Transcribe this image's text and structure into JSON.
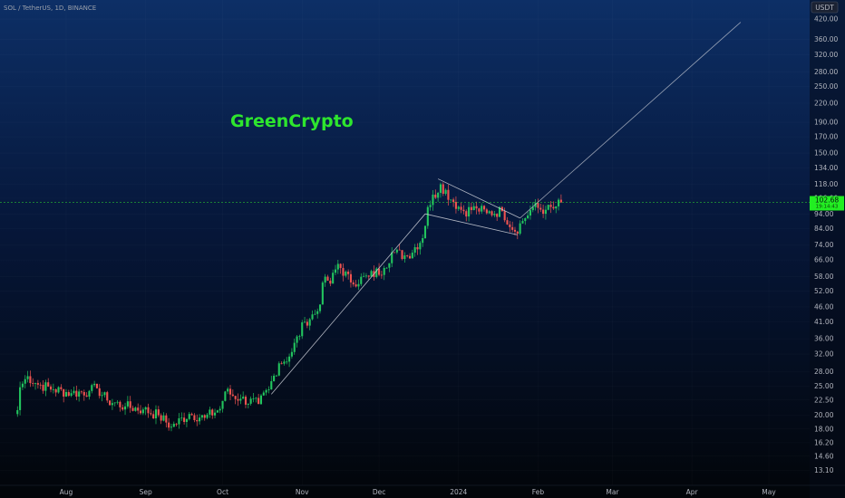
{
  "header": {
    "symbol": "SOL / TetherUS, 1D, BINANCE"
  },
  "watermark": "GreenCrypto",
  "price_axis": {
    "currency": "USDT",
    "ticks": [
      "420.00",
      "360.00",
      "320.00",
      "280.00",
      "250.00",
      "220.00",
      "190.00",
      "170.00",
      "150.00",
      "134.00",
      "118.00",
      "106.00",
      "94.00",
      "84.00",
      "74.00",
      "66.00",
      "58.00",
      "52.00",
      "46.00",
      "41.00",
      "36.00",
      "32.00",
      "28.00",
      "25.00",
      "22.50",
      "20.00",
      "18.00",
      "16.20",
      "14.60",
      "13.10"
    ],
    "last_price": "102.68",
    "last_price_sub": "19:14:43"
  },
  "time_axis": {
    "labels": [
      "Aug",
      "Sep",
      "Oct",
      "Nov",
      "Dec",
      "2024",
      "Feb",
      "Mar",
      "Apr",
      "May"
    ]
  },
  "colors": {
    "up": "#26a69a",
    "down": "#ef5350",
    "bull_fill": "#22c55e",
    "last_price_bg": "#22ee22",
    "pattern_lines": "#d1d4dc"
  },
  "chart_data": {
    "type": "candlestick",
    "scale": "log",
    "ylim": [
      12,
      460
    ],
    "title": "SOL / TetherUS, 1D, BINANCE",
    "xlabel": "",
    "ylabel": "",
    "anchors": [
      {
        "d": "2023-07-13",
        "c": 20.8
      },
      {
        "d": "2023-07-14",
        "c": 24.8
      },
      {
        "d": "2023-07-17",
        "c": 27.0
      },
      {
        "d": "2023-07-20",
        "c": 25.6
      },
      {
        "d": "2023-07-27",
        "c": 24.4
      },
      {
        "d": "2023-08-03",
        "c": 23.7
      },
      {
        "d": "2023-08-10",
        "c": 24.1
      },
      {
        "d": "2023-08-13",
        "c": 24.6
      },
      {
        "d": "2023-08-17",
        "c": 22.4
      },
      {
        "d": "2023-08-24",
        "c": 21.4
      },
      {
        "d": "2023-08-31",
        "c": 20.9
      },
      {
        "d": "2023-09-06",
        "c": 20.0
      },
      {
        "d": "2023-09-11",
        "c": 18.3
      },
      {
        "d": "2023-09-18",
        "c": 20.2
      },
      {
        "d": "2023-09-24",
        "c": 19.6
      },
      {
        "d": "2023-09-30",
        "c": 21.0
      },
      {
        "d": "2023-10-02",
        "c": 24.0
      },
      {
        "d": "2023-10-08",
        "c": 22.7
      },
      {
        "d": "2023-10-15",
        "c": 21.8
      },
      {
        "d": "2023-10-19",
        "c": 24.4
      },
      {
        "d": "2023-10-23",
        "c": 29.8
      },
      {
        "d": "2023-10-27",
        "c": 31.4
      },
      {
        "d": "2023-11-02",
        "c": 41.0
      },
      {
        "d": "2023-11-07",
        "c": 44.5
      },
      {
        "d": "2023-11-10",
        "c": 58.0
      },
      {
        "d": "2023-11-12",
        "c": 55.0
      },
      {
        "d": "2023-11-15",
        "c": 64.0
      },
      {
        "d": "2023-11-20",
        "c": 55.5
      },
      {
        "d": "2023-11-27",
        "c": 58.0
      },
      {
        "d": "2023-12-03",
        "c": 62.0
      },
      {
        "d": "2023-12-06",
        "c": 70.0
      },
      {
        "d": "2023-12-12",
        "c": 68.0
      },
      {
        "d": "2023-12-18",
        "c": 78.0
      },
      {
        "d": "2023-12-20",
        "c": 99.0
      },
      {
        "d": "2023-12-25",
        "c": 118.0
      },
      {
        "d": "2023-12-30",
        "c": 103.0
      },
      {
        "d": "2024-01-03",
        "c": 96.0
      },
      {
        "d": "2024-01-08",
        "c": 98.0
      },
      {
        "d": "2024-01-12",
        "c": 94.5
      },
      {
        "d": "2024-01-18",
        "c": 96.0
      },
      {
        "d": "2024-01-23",
        "c": 82.0
      },
      {
        "d": "2024-01-26",
        "c": 89.0
      },
      {
        "d": "2024-01-30",
        "c": 99.0
      },
      {
        "d": "2024-02-04",
        "c": 97.0
      },
      {
        "d": "2024-02-07",
        "c": 98.0
      },
      {
        "d": "2024-02-10",
        "c": 102.68
      }
    ],
    "pattern": {
      "pole_lower": [
        {
          "d": "2023-10-20",
          "p": 23.5
        },
        {
          "d": "2023-12-19",
          "p": 94.0
        }
      ],
      "flag_upper": [
        {
          "d": "2023-12-24",
          "p": 123.0
        },
        {
          "d": "2024-01-25",
          "p": 91.0
        }
      ],
      "flag_lower": [
        {
          "d": "2023-12-19",
          "p": 94.0
        },
        {
          "d": "2024-01-24",
          "p": 80.0
        }
      ],
      "target": [
        {
          "d": "2024-01-25",
          "p": 91.0
        },
        {
          "d": "2024-04-20",
          "p": 410.0
        }
      ]
    },
    "last_price": 102.68
  }
}
